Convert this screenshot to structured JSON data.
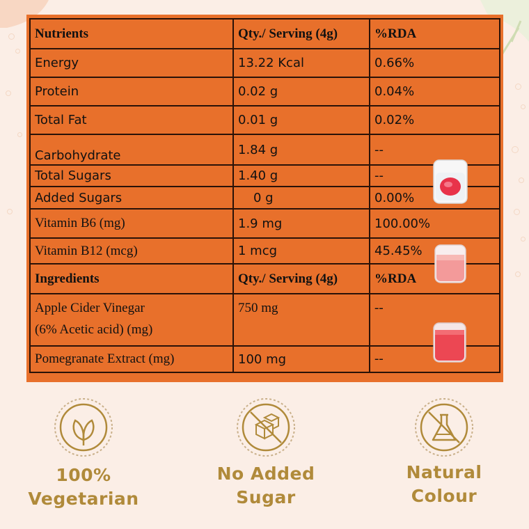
{
  "nutrition_table": {
    "header": [
      "Nutrients",
      "Qty./ Serving (4g)",
      "%RDA"
    ],
    "rows": [
      {
        "name": "Energy",
        "qty": "13.22 Kcal",
        "rda": "0.66%"
      },
      {
        "name": "Protein",
        "qty": "0.02 g",
        "rda": "0.04%"
      },
      {
        "name": "Total Fat",
        "qty": "0.01 g",
        "rda": "0.02%"
      },
      {
        "name": "Carbohydrate",
        "qty": "1.84 g",
        "rda": "--"
      },
      {
        "name": "Total Sugars",
        "qty": "1.40 g",
        "rda": "--"
      },
      {
        "name": "Added Sugars",
        "qty": "0 g",
        "rda": "0.00%"
      },
      {
        "name": "Vitamin B6 (mg)",
        "qty": "1.9 mg",
        "rda": "100.00%"
      },
      {
        "name": "Vitamin B12 (mcg)",
        "qty": "1 mcg",
        "rda": "45.45%"
      }
    ]
  },
  "ingredients_table": {
    "header": [
      "Ingredients",
      "Qty./ Serving (4g)",
      "%RDA"
    ],
    "rows": [
      {
        "name_line1": "Apple Cider Vinegar",
        "name_line2": "(6% Acetic acid) (mg)",
        "qty": "750 mg",
        "rda": "--"
      },
      {
        "name": "Pomegranate Extract (mg)",
        "qty": "100 mg",
        "rda": "--"
      }
    ]
  },
  "badges": [
    {
      "icon": "leaf-icon",
      "label": "100%\nVegetarian"
    },
    {
      "icon": "no-sugar-cube-icon",
      "label": "No Added\nSugar"
    },
    {
      "icon": "no-flask-icon",
      "label": "Natural\nColour"
    }
  ],
  "colors": {
    "table_orange": "#e8702b",
    "border": "#2a1208",
    "badge_gold": "#b08a3a",
    "background": "#fbeee6"
  }
}
